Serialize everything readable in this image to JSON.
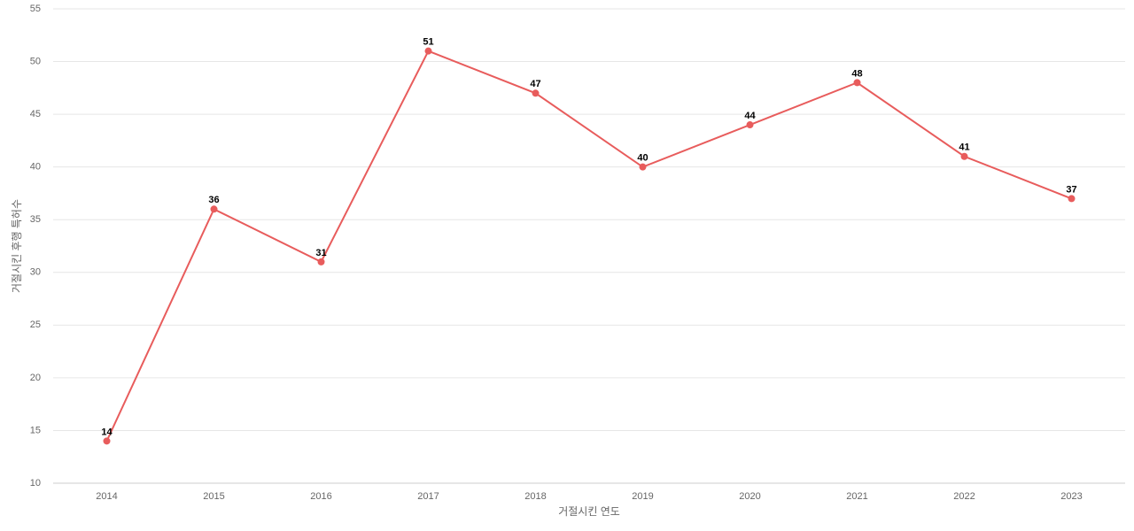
{
  "chart_data": {
    "type": "line",
    "x_label": "거절시킨 연도",
    "y_label": "거절시킨 후행 특허수",
    "categories": [
      "2014",
      "2015",
      "2016",
      "2017",
      "2018",
      "2019",
      "2020",
      "2021",
      "2022",
      "2023"
    ],
    "series": [
      {
        "color": "#e85c5c",
        "values": [
          14,
          36,
          31,
          51,
          47,
          40,
          44,
          48,
          41,
          37
        ]
      }
    ],
    "ylim": [
      10,
      55
    ],
    "yticks": [
      10,
      15,
      20,
      25,
      30,
      35,
      40,
      45,
      50,
      55
    ],
    "grid": true
  }
}
